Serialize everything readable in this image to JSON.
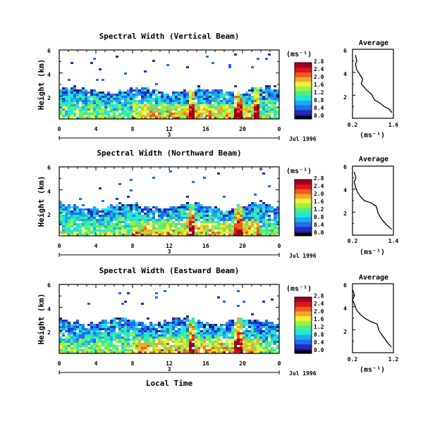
{
  "figure": {
    "xlabel": "Local Time",
    "day_label": "3",
    "date_label": "Jul 1996"
  },
  "chart_data": [
    {
      "type": "heatmap",
      "title": "Spectral Width (Vertical Beam)",
      "ylabel": "Height (km)",
      "xlim": [
        0,
        24
      ],
      "ylim": [
        0,
        6
      ],
      "x_ticks": [
        "0",
        "4",
        "8",
        "12",
        "16",
        "20",
        "0"
      ],
      "y_ticks": [
        "2",
        "4",
        "6"
      ],
      "colorbar": {
        "unit": "(ms⁻¹)",
        "ticks": [
          "0.0",
          "0.4",
          "0.8",
          "1.2",
          "1.6",
          "2.0",
          "2.4",
          "2.8"
        ]
      },
      "echo_top_km": 2.5,
      "spikes_hour": [
        14.5,
        19.5,
        21.5
      ],
      "profile": {
        "title": "Average",
        "xlabel": "(ms⁻¹)",
        "xlim": [
          0.2,
          1.6
        ],
        "x_ticks": [
          "0.2",
          "1.6"
        ],
        "y_ticks": [
          "2",
          "4",
          "6"
        ],
        "values": [
          [
            1.55,
            0.5
          ],
          [
            1.45,
            0.8
          ],
          [
            1.3,
            1.0
          ],
          [
            1.15,
            1.3
          ],
          [
            0.95,
            1.6
          ],
          [
            0.85,
            2.1
          ],
          [
            0.7,
            2.4
          ],
          [
            0.6,
            2.7
          ],
          [
            0.5,
            3.0
          ],
          [
            0.55,
            3.4
          ],
          [
            0.45,
            3.8
          ],
          [
            0.35,
            4.2
          ],
          [
            0.3,
            4.7
          ],
          [
            0.35,
            5.0
          ],
          [
            0.3,
            5.5
          ]
        ]
      }
    },
    {
      "type": "heatmap",
      "title": "Spectral Width (Northward Beam)",
      "ylabel": "Height (km)",
      "xlim": [
        0,
        24
      ],
      "ylim": [
        0,
        6
      ],
      "x_ticks": [
        "0",
        "4",
        "8",
        "12",
        "16",
        "20",
        "0"
      ],
      "y_ticks": [
        "2",
        "4",
        "6"
      ],
      "colorbar": {
        "unit": "(ms⁻¹)",
        "ticks": [
          "0.0",
          "0.4",
          "0.8",
          "1.2",
          "1.6",
          "2.0",
          "2.4",
          "2.8"
        ]
      },
      "echo_top_km": 2.6,
      "spikes_hour": [
        14.5,
        19.5
      ],
      "profile": {
        "title": "Average",
        "xlabel": "(ms⁻¹)",
        "xlim": [
          0.2,
          1.4
        ],
        "x_ticks": [
          "0.2",
          "1.4"
        ],
        "y_ticks": [
          "2",
          "4",
          "6"
        ],
        "values": [
          [
            1.35,
            0.5
          ],
          [
            1.2,
            0.9
          ],
          [
            1.05,
            1.4
          ],
          [
            0.95,
            1.9
          ],
          [
            0.9,
            2.5
          ],
          [
            0.75,
            2.8
          ],
          [
            0.55,
            3.0
          ],
          [
            0.45,
            3.3
          ],
          [
            0.35,
            3.7
          ],
          [
            0.3,
            4.1
          ],
          [
            0.25,
            4.6
          ],
          [
            0.3,
            5.0
          ],
          [
            0.25,
            5.5
          ]
        ]
      }
    },
    {
      "type": "heatmap",
      "title": "Spectral Width (Eastward Beam)",
      "ylabel": "Height (km)",
      "xlim": [
        0,
        24
      ],
      "ylim": [
        0,
        6
      ],
      "x_ticks": [
        "0",
        "4",
        "8",
        "12",
        "16",
        "20",
        "0"
      ],
      "y_ticks": [
        "2",
        "4",
        "6"
      ],
      "colorbar": {
        "unit": "(ms⁻¹)",
        "ticks": [
          "0.0",
          "0.4",
          "0.8",
          "1.2",
          "1.6",
          "2.0",
          "2.4",
          "2.8"
        ]
      },
      "echo_top_km": 2.8,
      "spikes_hour": [
        14.5,
        19.5
      ],
      "profile": {
        "title": "Average",
        "xlabel": "(ms⁻¹)",
        "xlim": [
          0.2,
          1.2
        ],
        "x_ticks": [
          "0.2",
          "1.2"
        ],
        "y_ticks": [
          "2",
          "4",
          "6"
        ],
        "values": [
          [
            1.15,
            0.5
          ],
          [
            1.05,
            0.9
          ],
          [
            0.95,
            1.4
          ],
          [
            0.85,
            1.9
          ],
          [
            0.8,
            2.5
          ],
          [
            0.65,
            2.7
          ],
          [
            0.5,
            3.0
          ],
          [
            0.4,
            3.3
          ],
          [
            0.3,
            3.7
          ],
          [
            0.25,
            4.2
          ],
          [
            0.2,
            4.6
          ],
          [
            0.25,
            5.0
          ],
          [
            0.2,
            5.5
          ]
        ]
      }
    }
  ]
}
